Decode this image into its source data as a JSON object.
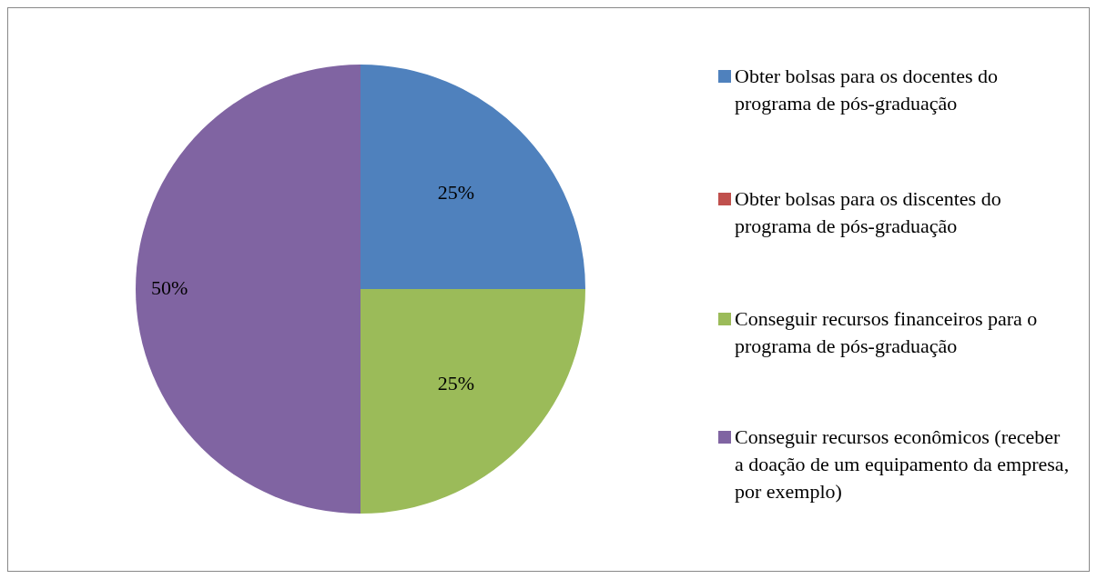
{
  "chart_data": {
    "type": "pie",
    "categories": [
      "Obter bolsas para os docentes do programa de pós-graduação",
      "Obter bolsas para os discentes do programa de pós-graduação",
      "Conseguir recursos financeiros para o programa de pós-graduação",
      "Conseguir recursos econômicos (receber a doação de um equipamento da empresa, por exemplo)"
    ],
    "values": [
      25,
      0,
      25,
      50
    ],
    "colors": [
      "#4f81bd",
      "#c0504d",
      "#9bbb59",
      "#8064a2"
    ],
    "value_labels": [
      "25%",
      null,
      "25%",
      "50%"
    ],
    "legend": "right"
  }
}
